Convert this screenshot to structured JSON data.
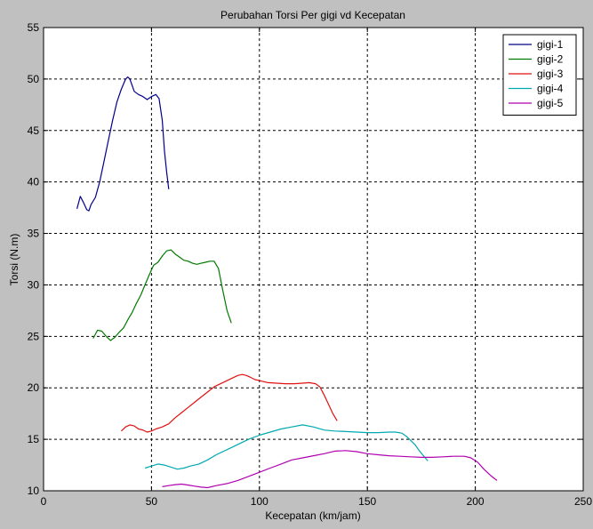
{
  "chart_data": {
    "type": "line",
    "title": "Perubahan Torsi Per gigi vd Kecepatan",
    "xlabel": "Kecepatan (km/jam)",
    "ylabel": "Torsi (N.m)",
    "xlim": [
      0,
      250
    ],
    "ylim": [
      10,
      55
    ],
    "xticks": [
      0,
      50,
      100,
      150,
      200,
      250
    ],
    "yticks": [
      10,
      15,
      20,
      25,
      30,
      35,
      40,
      45,
      50,
      55
    ],
    "grid": true,
    "legend_position": "top-right",
    "series": [
      {
        "name": "gigi-1",
        "color": "#00008b",
        "x": [
          15.5,
          17,
          18.5,
          20,
          21,
          22,
          24,
          26,
          28,
          30,
          32,
          34,
          36,
          38,
          39,
          40,
          42,
          44,
          46,
          48,
          50,
          52,
          53.5,
          55,
          56,
          57,
          58
        ],
        "y": [
          37.4,
          38.6,
          38.0,
          37.3,
          37.2,
          37.8,
          38.5,
          40.0,
          42.0,
          44.0,
          46.0,
          47.8,
          49.0,
          50.0,
          50.2,
          50.0,
          48.8,
          48.5,
          48.3,
          48.0,
          48.3,
          48.5,
          48.1,
          46.0,
          43.0,
          41.0,
          39.3
        ]
      },
      {
        "name": "gigi-2",
        "color": "#007a00",
        "x": [
          23,
          25,
          27,
          29,
          31,
          33,
          35,
          37,
          39,
          41,
          43,
          45,
          47,
          49,
          51,
          53,
          55,
          57,
          59,
          61,
          63,
          65,
          67,
          69,
          71,
          73,
          75,
          77,
          79,
          81,
          83,
          85,
          87
        ],
        "y": [
          24.8,
          25.6,
          25.5,
          25.0,
          24.6,
          24.9,
          25.4,
          25.8,
          26.6,
          27.3,
          28.2,
          29.0,
          30.0,
          31.0,
          31.9,
          32.2,
          32.8,
          33.3,
          33.4,
          33.0,
          32.7,
          32.4,
          32.3,
          32.1,
          32.0,
          32.1,
          32.2,
          32.3,
          32.3,
          31.6,
          29.5,
          27.5,
          26.3
        ]
      },
      {
        "name": "gigi-3",
        "color": "#e01010",
        "x": [
          36,
          38,
          40,
          42,
          44,
          46,
          48,
          50,
          52,
          55,
          58,
          61,
          64,
          67,
          70,
          73,
          76,
          79,
          82,
          85,
          88,
          90,
          92,
          94,
          96,
          98,
          100,
          104,
          108,
          112,
          116,
          120,
          123,
          126,
          128,
          130,
          132,
          134,
          136
        ],
        "y": [
          15.8,
          16.2,
          16.4,
          16.3,
          16.0,
          15.9,
          15.7,
          15.8,
          16.0,
          16.2,
          16.5,
          17.1,
          17.6,
          18.1,
          18.6,
          19.1,
          19.6,
          20.1,
          20.4,
          20.7,
          21.0,
          21.2,
          21.3,
          21.2,
          21.0,
          20.8,
          20.7,
          20.5,
          20.45,
          20.4,
          20.4,
          20.45,
          20.5,
          20.4,
          20.1,
          19.3,
          18.4,
          17.5,
          16.8
        ]
      },
      {
        "name": "gigi-4",
        "color": "#00a8b0",
        "x": [
          47,
          50,
          53,
          56,
          59,
          62,
          65,
          68,
          72,
          76,
          80,
          85,
          90,
          95,
          100,
          105,
          110,
          115,
          120,
          125,
          130,
          135,
          140,
          145,
          150,
          155,
          160,
          163,
          166,
          168,
          170,
          172,
          174,
          176,
          178
        ],
        "y": [
          12.2,
          12.4,
          12.6,
          12.5,
          12.3,
          12.1,
          12.2,
          12.4,
          12.6,
          13.0,
          13.5,
          14.0,
          14.5,
          15.0,
          15.4,
          15.7,
          16.0,
          16.2,
          16.4,
          16.2,
          15.9,
          15.8,
          15.75,
          15.7,
          15.65,
          15.65,
          15.7,
          15.7,
          15.6,
          15.3,
          14.9,
          14.5,
          13.9,
          13.4,
          12.9
        ]
      },
      {
        "name": "gigi-5",
        "color": "#b000b0",
        "x": [
          55,
          58,
          61,
          64,
          67,
          70,
          73,
          76,
          80,
          85,
          90,
          95,
          100,
          105,
          110,
          115,
          120,
          125,
          130,
          135,
          140,
          145,
          150,
          155,
          160,
          165,
          170,
          175,
          180,
          185,
          190,
          195,
          198,
          201,
          204,
          207,
          210
        ],
        "y": [
          10.4,
          10.5,
          10.6,
          10.65,
          10.55,
          10.45,
          10.35,
          10.3,
          10.5,
          10.7,
          11.0,
          11.4,
          11.8,
          12.2,
          12.6,
          13.0,
          13.2,
          13.4,
          13.6,
          13.85,
          13.9,
          13.8,
          13.6,
          13.5,
          13.4,
          13.35,
          13.3,
          13.25,
          13.25,
          13.3,
          13.35,
          13.35,
          13.2,
          12.8,
          12.1,
          11.5,
          11.0
        ]
      }
    ]
  }
}
